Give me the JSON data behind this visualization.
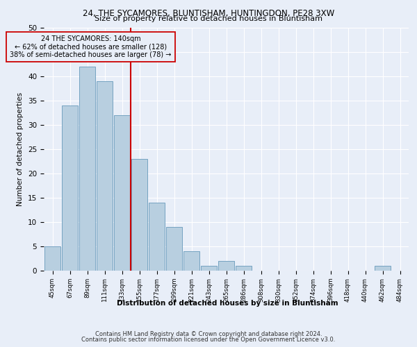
{
  "title1": "24, THE SYCAMORES, BLUNTISHAM, HUNTINGDON, PE28 3XW",
  "title2": "Size of property relative to detached houses in Bluntisham",
  "xlabel": "Distribution of detached houses by size in Bluntisham",
  "ylabel": "Number of detached properties",
  "footer1": "Contains HM Land Registry data © Crown copyright and database right 2024.",
  "footer2": "Contains public sector information licensed under the Open Government Licence v3.0.",
  "annotation_line1": "24 THE SYCAMORES: 140sqm",
  "annotation_line2": "← 62% of detached houses are smaller (128)",
  "annotation_line3": "38% of semi-detached houses are larger (78) →",
  "bar_color": "#b8cfe0",
  "bar_edge_color": "#6699bb",
  "ref_line_color": "#cc0000",
  "categories": [
    "45sqm",
    "67sqm",
    "89sqm",
    "111sqm",
    "133sqm",
    "155sqm",
    "177sqm",
    "199sqm",
    "221sqm",
    "243sqm",
    "265sqm",
    "286sqm",
    "308sqm",
    "330sqm",
    "352sqm",
    "374sqm",
    "396sqm",
    "418sqm",
    "440sqm",
    "462sqm",
    "484sqm"
  ],
  "values": [
    5,
    34,
    42,
    39,
    32,
    23,
    14,
    9,
    4,
    1,
    2,
    1,
    0,
    0,
    0,
    0,
    0,
    0,
    0,
    1,
    0
  ],
  "ylim": [
    0,
    50
  ],
  "ref_line_x": 4.5,
  "background_color": "#e8eef8",
  "grid_color": "#ffffff",
  "yticks": [
    0,
    5,
    10,
    15,
    20,
    25,
    30,
    35,
    40,
    45,
    50
  ]
}
